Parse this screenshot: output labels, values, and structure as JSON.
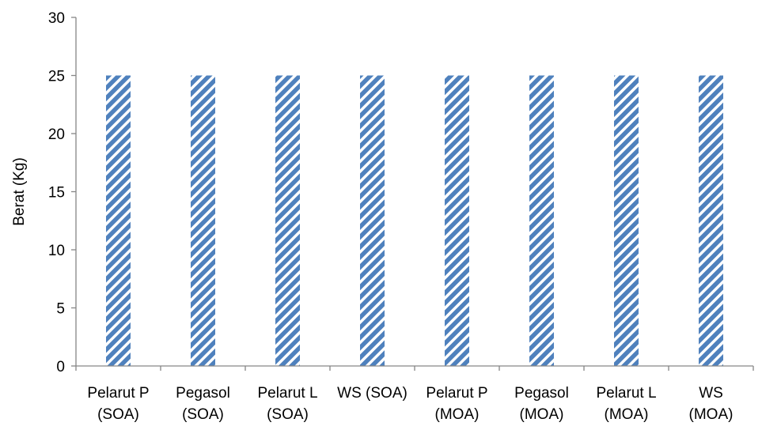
{
  "chart_data": {
    "type": "bar",
    "categories": [
      [
        "Pelarut P",
        "(SOA)"
      ],
      [
        "Pegasol",
        "(SOA)"
      ],
      [
        "Pelarut L",
        "(SOA)"
      ],
      [
        "WS (SOA)"
      ],
      [
        "Pelarut P",
        "(MOA)"
      ],
      [
        "Pegasol",
        "(MOA)"
      ],
      [
        "Pelarut L",
        "(MOA)"
      ],
      [
        "WS",
        "(MOA)"
      ]
    ],
    "values": [
      25,
      25,
      25,
      25,
      25,
      25,
      25,
      25
    ],
    "title": "",
    "xlabel": "",
    "ylabel": "Berat (Kg)",
    "ylim": [
      0,
      30
    ],
    "yticks": [
      0,
      5,
      10,
      15,
      20,
      25,
      30
    ],
    "grid": false,
    "legend": "none",
    "bar_color": "#4F81BD",
    "bar_pattern": "diagonal-stripes"
  }
}
